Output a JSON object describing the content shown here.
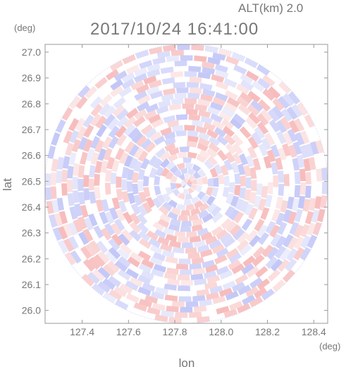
{
  "header": {
    "altitude_label": "ALT(km) 2.0",
    "timestamp": "2017/10/24 16:41:00"
  },
  "chart_data": {
    "type": "heatmap",
    "title": "2017/10/24 16:41:00",
    "subtitle": "ALT(km) 2.0",
    "xlabel": "lon",
    "ylabel": "lat",
    "x_unit": "(deg)",
    "y_unit": "(deg)",
    "xlim": [
      127.24,
      128.46
    ],
    "ylim": [
      25.95,
      27.03
    ],
    "x_ticks": [
      "127.4",
      "127.6",
      "127.8",
      "128.0",
      "128.2",
      "128.4"
    ],
    "y_ticks": [
      "26.0",
      "26.1",
      "26.2",
      "26.3",
      "26.4",
      "26.5",
      "26.6",
      "26.7",
      "26.8",
      "26.9",
      "27.0"
    ],
    "coverage": {
      "shape": "circle",
      "center_lon": 127.85,
      "center_lat": 26.49,
      "radius_lon": 0.61,
      "radius_lat": 0.54
    },
    "colors": {
      "positive": "#f4a0a0",
      "negative": "#aab0f4",
      "neutral": "#ffffff",
      "frame": "#999999",
      "text": "#777777"
    },
    "grid": false,
    "legend": "none"
  }
}
